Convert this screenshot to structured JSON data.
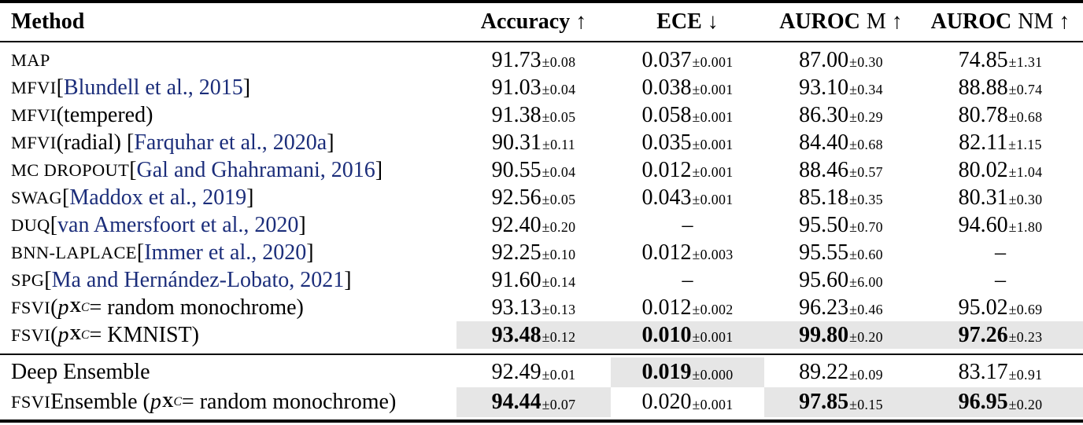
{
  "colors": {
    "citation_blue": "#1b2d7a",
    "highlight_gray": "#e6e6e6",
    "rule_black": "#000000"
  },
  "table": {
    "pm_symbol": "±",
    "dash": "–",
    "header": {
      "method_label": "Method",
      "metrics": [
        {
          "bold": "Accuracy",
          "rest": "",
          "arrow": "↑"
        },
        {
          "bold": "ECE",
          "rest": "",
          "arrow": "↓"
        },
        {
          "bold": "AUROC",
          "rest": "M",
          "arrow": "↑"
        },
        {
          "bold": "AUROC",
          "rest": "NM",
          "arrow": "↑"
        }
      ]
    },
    "sections": [
      {
        "rows": [
          {
            "method": [
              {
                "t": "MAP",
                "s": "sc"
              }
            ],
            "cells": [
              {
                "v": "91.73",
                "pm": "0.08"
              },
              {
                "v": "0.037",
                "pm": "0.001"
              },
              {
                "v": "87.00",
                "pm": "0.30"
              },
              {
                "v": "74.85",
                "pm": "1.31"
              }
            ]
          },
          {
            "method": [
              {
                "t": "MFVI",
                "s": "sc"
              },
              {
                "t": " [",
                "s": "n"
              },
              {
                "t": "Blundell et al., 2015",
                "s": "cite"
              },
              {
                "t": "]",
                "s": "n"
              }
            ],
            "cells": [
              {
                "v": "91.03",
                "pm": "0.04"
              },
              {
                "v": "0.038",
                "pm": "0.001"
              },
              {
                "v": "93.10",
                "pm": "0.34"
              },
              {
                "v": "88.88",
                "pm": "0.74"
              }
            ]
          },
          {
            "method": [
              {
                "t": "MFVI",
                "s": "sc"
              },
              {
                "t": " (tempered)",
                "s": "n"
              }
            ],
            "cells": [
              {
                "v": "91.38",
                "pm": "0.05"
              },
              {
                "v": "0.058",
                "pm": "0.001"
              },
              {
                "v": "86.30",
                "pm": "0.29"
              },
              {
                "v": "80.78",
                "pm": "0.68"
              }
            ]
          },
          {
            "method": [
              {
                "t": "MFVI",
                "s": "sc"
              },
              {
                "t": " (radial) [",
                "s": "n"
              },
              {
                "t": "Farquhar et al., 2020a",
                "s": "cite"
              },
              {
                "t": "]",
                "s": "n"
              }
            ],
            "cells": [
              {
                "v": "90.31",
                "pm": "0.11"
              },
              {
                "v": "0.035",
                "pm": "0.001"
              },
              {
                "v": "84.40",
                "pm": "0.68"
              },
              {
                "v": "82.11",
                "pm": "1.15"
              }
            ]
          },
          {
            "method": [
              {
                "t": "MC DROPOUT",
                "s": "sc"
              },
              {
                "t": " [",
                "s": "n"
              },
              {
                "t": "Gal and Ghahramani, 2016",
                "s": "cite"
              },
              {
                "t": "]",
                "s": "n"
              }
            ],
            "cells": [
              {
                "v": "90.55",
                "pm": "0.04"
              },
              {
                "v": "0.012",
                "pm": "0.001"
              },
              {
                "v": "88.46",
                "pm": "0.57"
              },
              {
                "v": "80.02",
                "pm": "1.04"
              }
            ]
          },
          {
            "method": [
              {
                "t": "SWAG",
                "s": "sc"
              },
              {
                "t": " [",
                "s": "n"
              },
              {
                "t": "Maddox et al., 2019",
                "s": "cite"
              },
              {
                "t": "]",
                "s": "n"
              }
            ],
            "cells": [
              {
                "v": "92.56",
                "pm": "0.05"
              },
              {
                "v": "0.043",
                "pm": "0.001"
              },
              {
                "v": "85.18",
                "pm": "0.35"
              },
              {
                "v": "80.31",
                "pm": "0.30"
              }
            ]
          },
          {
            "method": [
              {
                "t": "DUQ",
                "s": "sc"
              },
              {
                "t": " [",
                "s": "n"
              },
              {
                "t": "van Amersfoort et al., 2020",
                "s": "cite"
              },
              {
                "t": "]",
                "s": "n"
              }
            ],
            "cells": [
              {
                "v": "92.40",
                "pm": "0.20"
              },
              {
                "dash": true
              },
              {
                "v": "95.50",
                "pm": "0.70"
              },
              {
                "v": "94.60",
                "pm": "1.80"
              }
            ]
          },
          {
            "method": [
              {
                "t": "BNN-LAPLACE",
                "s": "sc"
              },
              {
                "t": " [",
                "s": "n"
              },
              {
                "t": "Immer et al., 2020",
                "s": "cite"
              },
              {
                "t": "]",
                "s": "n"
              }
            ],
            "cells": [
              {
                "v": "92.25",
                "pm": "0.10"
              },
              {
                "v": "0.012",
                "pm": "0.003"
              },
              {
                "v": "95.55",
                "pm": "0.60"
              },
              {
                "dash": true
              }
            ]
          },
          {
            "method": [
              {
                "t": "SPG",
                "s": "sc"
              },
              {
                "t": " [",
                "s": "n"
              },
              {
                "t": "Ma and Hernández-Lobato, 2021",
                "s": "cite"
              },
              {
                "t": "]",
                "s": "n"
              }
            ],
            "cells": [
              {
                "v": "91.60",
                "pm": "0.14"
              },
              {
                "dash": true
              },
              {
                "v": "95.60",
                "pm": "6.00"
              },
              {
                "dash": true
              }
            ]
          },
          {
            "method": [
              {
                "t": "FSVI",
                "s": "sc"
              },
              {
                "t": " (",
                "s": "n"
              },
              {
                "t": "p",
                "s": "mi"
              },
              {
                "t": "X",
                "s": "msx"
              },
              {
                "t": "C",
                "s": "msc"
              },
              {
                "t": " = random monochrome)",
                "s": "n"
              }
            ],
            "cells": [
              {
                "v": "93.13",
                "pm": "0.13"
              },
              {
                "v": "0.012",
                "pm": "0.002"
              },
              {
                "v": "96.23",
                "pm": "0.46"
              },
              {
                "v": "95.02",
                "pm": "0.69"
              }
            ]
          },
          {
            "method": [
              {
                "t": "FSVI",
                "s": "sc"
              },
              {
                "t": " (",
                "s": "n"
              },
              {
                "t": "p",
                "s": "mi"
              },
              {
                "t": "X",
                "s": "msx"
              },
              {
                "t": "C",
                "s": "msc"
              },
              {
                "t": " = KMNIST)",
                "s": "n"
              }
            ],
            "cells": [
              {
                "v": "93.48",
                "pm": "0.12",
                "bold": true,
                "hl": true
              },
              {
                "v": "0.010",
                "pm": "0.001",
                "bold": true,
                "hl": true
              },
              {
                "v": "99.80",
                "pm": "0.20",
                "bold": true,
                "hl": true
              },
              {
                "v": "97.26",
                "pm": "0.23",
                "bold": true,
                "hl": true
              }
            ]
          }
        ]
      },
      {
        "rows": [
          {
            "method": [
              {
                "t": "Deep Ensemble",
                "s": "n"
              }
            ],
            "cells": [
              {
                "v": "92.49",
                "pm": "0.01"
              },
              {
                "v": "0.019",
                "pm": "0.000",
                "bold": true,
                "hl": true
              },
              {
                "v": "89.22",
                "pm": "0.09"
              },
              {
                "v": "83.17",
                "pm": "0.91"
              }
            ]
          },
          {
            "method": [
              {
                "t": "FSVI",
                "s": "sc"
              },
              {
                "t": " Ensemble (",
                "s": "n"
              },
              {
                "t": "p",
                "s": "mi"
              },
              {
                "t": "X",
                "s": "msx"
              },
              {
                "t": "C",
                "s": "msc"
              },
              {
                "t": " = random monochrome)",
                "s": "n"
              }
            ],
            "cells": [
              {
                "v": "94.44",
                "pm": "0.07",
                "bold": true,
                "hl": true
              },
              {
                "v": "0.020",
                "pm": "0.001"
              },
              {
                "v": "97.85",
                "pm": "0.15",
                "bold": true,
                "hl": true
              },
              {
                "v": "96.95",
                "pm": "0.20",
                "bold": true,
                "hl": true
              }
            ]
          }
        ]
      }
    ]
  }
}
